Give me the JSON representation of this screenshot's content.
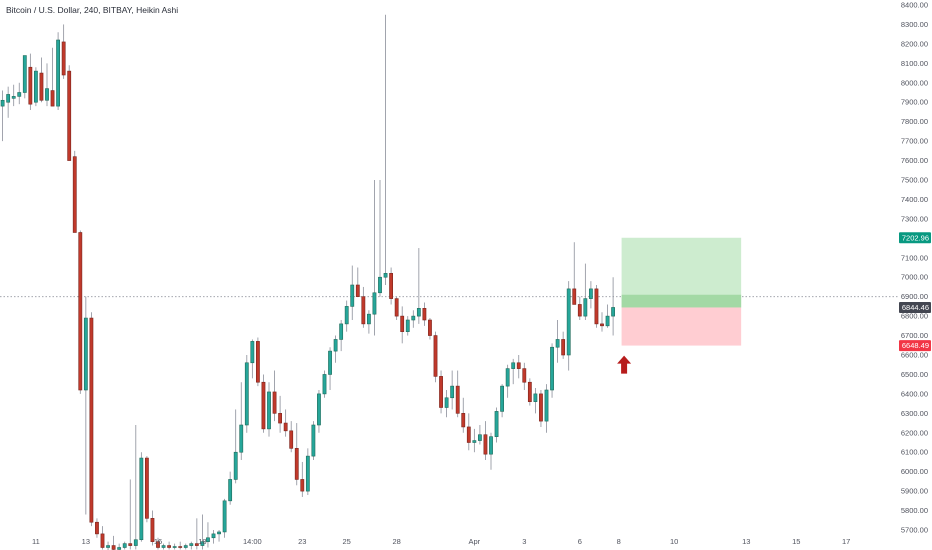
{
  "chart_title": "Bitcoin / U.S. Dollar, 240, BITBAY, Heikin Ashi",
  "colors": {
    "up": "#26a69a",
    "up_border": "#1e6b5a",
    "down": "#c0392b",
    "down_border": "#7b241c",
    "wick": "#8a8e99",
    "profit_zone": "#cdeccf",
    "profit_band": "#a3d9a5",
    "loss_zone": "#ffcdd2",
    "target_tag": "#089981",
    "current_tag": "#434651",
    "stop_tag": "#f23645",
    "arrow": "#b71c1c",
    "crosshair": "#9598a1"
  },
  "icons": {
    "entry_marker": "up-arrow-icon"
  },
  "chart_data": {
    "type": "candlestick",
    "title": "Bitcoin / U.S. Dollar, 240, BITBAY, Heikin Ashi",
    "ylim": [
      5700,
      8400
    ],
    "y_ticks": [
      8400,
      8300,
      8200,
      8100,
      8000,
      7900,
      7800,
      7700,
      7600,
      7500,
      7400,
      7300,
      7200,
      7100,
      7000,
      6900,
      6800,
      6700,
      6600,
      6500,
      6400,
      6300,
      6200,
      6100,
      6000,
      5900,
      5800,
      5700
    ],
    "y_tick_labels": [
      "8400.00",
      "8300.00",
      "8200.00",
      "8100.00",
      "8000.00",
      "7900.00",
      "7800.00",
      "7700.00",
      "7600.00",
      "7500.00",
      "7400.00",
      "7300.00",
      "7200.00",
      "7100.00",
      "7000.00",
      "6900.00",
      "6800.00",
      "6700.00",
      "6600.00",
      "6500.00",
      "6400.00",
      "6300.00",
      "6200.00",
      "6100.00",
      "6000.00",
      "5900.00",
      "5800.00",
      "5700.00"
    ],
    "x_ticks": [
      {
        "label": "11",
        "i": 6
      },
      {
        "label": "13",
        "i": 15
      },
      {
        "label": "16",
        "i": 28
      },
      {
        "label": "18",
        "i": 36
      },
      {
        "label": "14:00",
        "i": 45
      },
      {
        "label": "23",
        "i": 54
      },
      {
        "label": "25",
        "i": 62
      },
      {
        "label": "28",
        "i": 71
      },
      {
        "label": "Apr",
        "i": 85
      },
      {
        "label": "3",
        "i": 94
      },
      {
        "label": "6",
        "i": 104
      },
      {
        "label": "8",
        "i": 111
      },
      {
        "label": "10",
        "i": 121
      },
      {
        "label": "13",
        "i": 134
      },
      {
        "label": "15",
        "i": 143
      },
      {
        "label": "17",
        "i": 152
      }
    ],
    "candles": [
      {
        "o": 7880,
        "h": 7960,
        "l": 7700,
        "c": 7910
      },
      {
        "o": 7900,
        "h": 7980,
        "l": 7820,
        "c": 7940
      },
      {
        "o": 7920,
        "h": 7990,
        "l": 7880,
        "c": 7930
      },
      {
        "o": 7930,
        "h": 8000,
        "l": 7890,
        "c": 7950
      },
      {
        "o": 7950,
        "h": 8120,
        "l": 7920,
        "c": 8140
      },
      {
        "o": 8080,
        "h": 8150,
        "l": 7860,
        "c": 7890
      },
      {
        "o": 7900,
        "h": 8080,
        "l": 7880,
        "c": 8060
      },
      {
        "o": 8050,
        "h": 8130,
        "l": 7900,
        "c": 7910
      },
      {
        "o": 7910,
        "h": 8100,
        "l": 7880,
        "c": 7970
      },
      {
        "o": 7960,
        "h": 8180,
        "l": 7880,
        "c": 7880
      },
      {
        "o": 7880,
        "h": 8260,
        "l": 7860,
        "c": 8220
      },
      {
        "o": 8210,
        "h": 8300,
        "l": 8020,
        "c": 8040
      },
      {
        "o": 8060,
        "h": 8090,
        "l": 7610,
        "c": 7600
      },
      {
        "o": 7620,
        "h": 7650,
        "l": 7240,
        "c": 7230
      },
      {
        "o": 7230,
        "h": 7240,
        "l": 6400,
        "c": 6420
      },
      {
        "o": 6420,
        "h": 6900,
        "l": 5780,
        "c": 6790
      },
      {
        "o": 6790,
        "h": 6820,
        "l": 5720,
        "c": 5740
      },
      {
        "o": 5740,
        "h": 5760,
        "l": 5660,
        "c": 5680
      },
      {
        "o": 5680,
        "h": 5720,
        "l": 5600,
        "c": 5610
      },
      {
        "o": 5610,
        "h": 5640,
        "l": 5590,
        "c": 5620
      },
      {
        "o": 5620,
        "h": 5670,
        "l": 5590,
        "c": 5600
      },
      {
        "o": 5600,
        "h": 5630,
        "l": 5590,
        "c": 5610
      },
      {
        "o": 5610,
        "h": 5640,
        "l": 5600,
        "c": 5630
      },
      {
        "o": 5630,
        "h": 5960,
        "l": 5600,
        "c": 5620
      },
      {
        "o": 5620,
        "h": 6240,
        "l": 5600,
        "c": 5650
      },
      {
        "o": 5650,
        "h": 6100,
        "l": 5640,
        "c": 6070
      },
      {
        "o": 6070,
        "h": 6080,
        "l": 5740,
        "c": 5760
      },
      {
        "o": 5760,
        "h": 5800,
        "l": 5620,
        "c": 5640
      },
      {
        "o": 5640,
        "h": 5660,
        "l": 5600,
        "c": 5610
      },
      {
        "o": 5610,
        "h": 5630,
        "l": 5600,
        "c": 5620
      },
      {
        "o": 5620,
        "h": 5640,
        "l": 5600,
        "c": 5610
      },
      {
        "o": 5610,
        "h": 5630,
        "l": 5600,
        "c": 5615
      },
      {
        "o": 5615,
        "h": 5640,
        "l": 5600,
        "c": 5610
      },
      {
        "o": 5610,
        "h": 5630,
        "l": 5600,
        "c": 5620
      },
      {
        "o": 5620,
        "h": 5640,
        "l": 5600,
        "c": 5630
      },
      {
        "o": 5630,
        "h": 5760,
        "l": 5600,
        "c": 5620
      },
      {
        "o": 5620,
        "h": 5780,
        "l": 5600,
        "c": 5640
      },
      {
        "o": 5640,
        "h": 5740,
        "l": 5610,
        "c": 5660
      },
      {
        "o": 5660,
        "h": 5700,
        "l": 5630,
        "c": 5680
      },
      {
        "o": 5680,
        "h": 5700,
        "l": 5640,
        "c": 5690
      },
      {
        "o": 5690,
        "h": 5860,
        "l": 5660,
        "c": 5850
      },
      {
        "o": 5850,
        "h": 6000,
        "l": 5830,
        "c": 5960
      },
      {
        "o": 5960,
        "h": 6320,
        "l": 5940,
        "c": 6100
      },
      {
        "o": 6100,
        "h": 6460,
        "l": 6060,
        "c": 6240
      },
      {
        "o": 6240,
        "h": 6600,
        "l": 6200,
        "c": 6560
      },
      {
        "o": 6560,
        "h": 6680,
        "l": 6480,
        "c": 6670
      },
      {
        "o": 6670,
        "h": 6690,
        "l": 6440,
        "c": 6460
      },
      {
        "o": 6460,
        "h": 6500,
        "l": 6200,
        "c": 6220
      },
      {
        "o": 6220,
        "h": 6460,
        "l": 6180,
        "c": 6410
      },
      {
        "o": 6410,
        "h": 6520,
        "l": 6260,
        "c": 6300
      },
      {
        "o": 6300,
        "h": 6390,
        "l": 6200,
        "c": 6250
      },
      {
        "o": 6250,
        "h": 6320,
        "l": 6180,
        "c": 6210
      },
      {
        "o": 6210,
        "h": 6260,
        "l": 6100,
        "c": 6120
      },
      {
        "o": 6120,
        "h": 6250,
        "l": 5930,
        "c": 5960
      },
      {
        "o": 5960,
        "h": 6050,
        "l": 5870,
        "c": 5900
      },
      {
        "o": 5900,
        "h": 6120,
        "l": 5880,
        "c": 6080
      },
      {
        "o": 6080,
        "h": 6260,
        "l": 6060,
        "c": 6240
      },
      {
        "o": 6240,
        "h": 6420,
        "l": 6200,
        "c": 6400
      },
      {
        "o": 6400,
        "h": 6520,
        "l": 6380,
        "c": 6500
      },
      {
        "o": 6500,
        "h": 6640,
        "l": 6420,
        "c": 6620
      },
      {
        "o": 6620,
        "h": 6700,
        "l": 6560,
        "c": 6680
      },
      {
        "o": 6680,
        "h": 6780,
        "l": 6620,
        "c": 6760
      },
      {
        "o": 6760,
        "h": 6880,
        "l": 6720,
        "c": 6850
      },
      {
        "o": 6850,
        "h": 7060,
        "l": 6780,
        "c": 6960
      },
      {
        "o": 6960,
        "h": 7050,
        "l": 6900,
        "c": 6900
      },
      {
        "o": 6900,
        "h": 6950,
        "l": 6740,
        "c": 6760
      },
      {
        "o": 6760,
        "h": 6830,
        "l": 6710,
        "c": 6810
      },
      {
        "o": 6810,
        "h": 7500,
        "l": 6700,
        "c": 6920
      },
      {
        "o": 6920,
        "h": 7500,
        "l": 6900,
        "c": 7000
      },
      {
        "o": 7000,
        "h": 8350,
        "l": 6960,
        "c": 7020
      },
      {
        "o": 7020,
        "h": 7050,
        "l": 6860,
        "c": 6890
      },
      {
        "o": 6890,
        "h": 6900,
        "l": 6780,
        "c": 6800
      },
      {
        "o": 6800,
        "h": 6850,
        "l": 6660,
        "c": 6720
      },
      {
        "o": 6720,
        "h": 6800,
        "l": 6700,
        "c": 6780
      },
      {
        "o": 6780,
        "h": 6830,
        "l": 6740,
        "c": 6800
      },
      {
        "o": 6800,
        "h": 7150,
        "l": 6760,
        "c": 6840
      },
      {
        "o": 6840,
        "h": 6870,
        "l": 6750,
        "c": 6780
      },
      {
        "o": 6780,
        "h": 6790,
        "l": 6680,
        "c": 6700
      },
      {
        "o": 6700,
        "h": 6720,
        "l": 6460,
        "c": 6490
      },
      {
        "o": 6490,
        "h": 6520,
        "l": 6300,
        "c": 6330
      },
      {
        "o": 6330,
        "h": 6420,
        "l": 6280,
        "c": 6380
      },
      {
        "o": 6380,
        "h": 6520,
        "l": 6320,
        "c": 6440
      },
      {
        "o": 6440,
        "h": 6520,
        "l": 6280,
        "c": 6300
      },
      {
        "o": 6300,
        "h": 6380,
        "l": 6200,
        "c": 6230
      },
      {
        "o": 6230,
        "h": 6300,
        "l": 6110,
        "c": 6150
      },
      {
        "o": 6150,
        "h": 6220,
        "l": 6100,
        "c": 6160
      },
      {
        "o": 6160,
        "h": 6240,
        "l": 6140,
        "c": 6190
      },
      {
        "o": 6190,
        "h": 6260,
        "l": 6060,
        "c": 6090
      },
      {
        "o": 6090,
        "h": 6200,
        "l": 6010,
        "c": 6180
      },
      {
        "o": 6180,
        "h": 6330,
        "l": 6150,
        "c": 6310
      },
      {
        "o": 6310,
        "h": 6450,
        "l": 6280,
        "c": 6440
      },
      {
        "o": 6440,
        "h": 6550,
        "l": 6380,
        "c": 6530
      },
      {
        "o": 6530,
        "h": 6580,
        "l": 6450,
        "c": 6560
      },
      {
        "o": 6560,
        "h": 6600,
        "l": 6480,
        "c": 6530
      },
      {
        "o": 6530,
        "h": 6560,
        "l": 6420,
        "c": 6460
      },
      {
        "o": 6460,
        "h": 6480,
        "l": 6340,
        "c": 6360
      },
      {
        "o": 6360,
        "h": 6430,
        "l": 6300,
        "c": 6400
      },
      {
        "o": 6400,
        "h": 6420,
        "l": 6230,
        "c": 6260
      },
      {
        "o": 6260,
        "h": 6450,
        "l": 6200,
        "c": 6420
      },
      {
        "o": 6420,
        "h": 6660,
        "l": 6380,
        "c": 6640
      },
      {
        "o": 6640,
        "h": 6780,
        "l": 6560,
        "c": 6680
      },
      {
        "o": 6680,
        "h": 6720,
        "l": 6580,
        "c": 6600
      },
      {
        "o": 6600,
        "h": 6980,
        "l": 6520,
        "c": 6940
      },
      {
        "o": 6940,
        "h": 7180,
        "l": 6880,
        "c": 6860
      },
      {
        "o": 6860,
        "h": 6900,
        "l": 6780,
        "c": 6800
      },
      {
        "o": 6800,
        "h": 7070,
        "l": 6780,
        "c": 6890
      },
      {
        "o": 6890,
        "h": 6980,
        "l": 6840,
        "c": 6940
      },
      {
        "o": 6940,
        "h": 6960,
        "l": 6740,
        "c": 6760
      },
      {
        "o": 6760,
        "h": 6820,
        "l": 6720,
        "c": 6750
      },
      {
        "o": 6750,
        "h": 6860,
        "l": 6740,
        "c": 6800
      },
      {
        "o": 6800,
        "h": 7000,
        "l": 6700,
        "c": 6844.46
      }
    ],
    "position": {
      "type": "long",
      "start_index": 112,
      "end_index": 133,
      "entry": 6844.46,
      "target": 7202.96,
      "stop": 6648.49,
      "target_label": "7202.96",
      "current_label": "6844.46",
      "stop_label": "6648.49"
    }
  }
}
